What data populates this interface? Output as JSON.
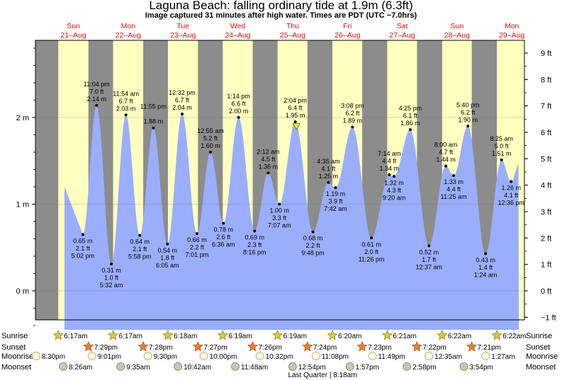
{
  "header": {
    "title": "Laguna Beach: falling  ordinary tide at 1.9m (6.3ft)",
    "subtitle": "Image captured 31 minutes after high water. Times are PDT (UTC −7.0hrs)"
  },
  "colors": {
    "night": "#8c8c8c",
    "day": "#ffffc0",
    "water": "#9aaefc",
    "dayname": "#e01010"
  },
  "days": [
    {
      "name": "Sun",
      "date": "21–Aug"
    },
    {
      "name": "Mon",
      "date": "22–Aug"
    },
    {
      "name": "Tue",
      "date": "23–Aug"
    },
    {
      "name": "Wed",
      "date": "24–Aug"
    },
    {
      "name": "Thu",
      "date": "25–Aug"
    },
    {
      "name": "Fri",
      "date": "26–Aug"
    },
    {
      "name": "Sat",
      "date": "27–Aug"
    },
    {
      "name": "Sun",
      "date": "28–Aug"
    },
    {
      "name": "Mon",
      "date": "29–Aug"
    }
  ],
  "chart_data": {
    "type": "area",
    "title": "Laguna Beach: falling  ordinary tide at 1.9m (6.3ft)",
    "left_axis": {
      "unit": "m",
      "ticks": [
        {
          "v": 0,
          "label": "0 m"
        },
        {
          "v": 1,
          "label": "1 m"
        },
        {
          "v": 2,
          "label": "2 m"
        }
      ],
      "ylim": [
        -0.45,
        2.9
      ]
    },
    "right_axis": {
      "unit": "ft",
      "ticks": [
        "−1 ft",
        "0 ft",
        "1 ft",
        "2 ft",
        "3 ft",
        "4 ft",
        "5 ft",
        "6 ft",
        "7 ft",
        "8 ft",
        "9 ft"
      ]
    },
    "x_unit": "hours since Sun 21-Aug 00:00 PDT",
    "xlim": [
      0,
      216
    ],
    "tides": [
      {
        "t": 17.03,
        "m": 0.65,
        "m_label": "0.65 m",
        "ft": "2.1 ft",
        "time": "5:02 pm",
        "type": "low"
      },
      {
        "t": 23.07,
        "m": 2.14,
        "m_label": "2.14 m",
        "ft": "7.0 ft",
        "time": "11:04 pm",
        "type": "high"
      },
      {
        "t": 29.53,
        "m": 0.31,
        "m_label": "0.31 m",
        "ft": "1.0 ft",
        "time": "5:32 am",
        "type": "low"
      },
      {
        "t": 35.9,
        "m": 2.03,
        "m_label": "2.03 m",
        "ft": "6.7 ft",
        "time": "11:54 am",
        "type": "high"
      },
      {
        "t": 41.97,
        "m": 0.64,
        "m_label": "0.64 m",
        "ft": "2.1 ft",
        "time": "5:58 pm",
        "type": "low"
      },
      {
        "t": 47.92,
        "m": 1.88,
        "m_label": "1.88 m",
        "ft": "",
        "time": "11:55 pm",
        "type": "high"
      },
      {
        "t": 54.08,
        "m": 0.54,
        "m_label": "0.54 m",
        "ft": "1.8 ft",
        "time": "6:05 am",
        "type": "low"
      },
      {
        "t": 60.53,
        "m": 2.04,
        "m_label": "2.04 m",
        "ft": "6.7 ft",
        "time": "12:32 pm",
        "type": "high"
      },
      {
        "t": 67.02,
        "m": 0.66,
        "m_label": "0.66 m",
        "ft": "2.2 ft",
        "time": "7:01 pm",
        "type": "low"
      },
      {
        "t": 72.92,
        "m": 1.6,
        "m_label": "1.60 m",
        "ft": "5.2 ft",
        "time": "12:55 am",
        "type": "high"
      },
      {
        "t": 78.6,
        "m": 0.78,
        "m_label": "0.78 m",
        "ft": "2.6 ft",
        "time": "6:36 am",
        "type": "low"
      },
      {
        "t": 85.23,
        "m": 2.0,
        "m_label": "2.00 m",
        "ft": "6.6 ft",
        "time": "1:14 pm",
        "type": "high"
      },
      {
        "t": 92.27,
        "m": 0.69,
        "m_label": "0.69 m",
        "ft": "2.3 ft",
        "time": "8:16 pm",
        "type": "low"
      },
      {
        "t": 98.2,
        "m": 1.36,
        "m_label": "1.36 m",
        "ft": "4.5 ft",
        "time": "2:12 am",
        "type": "high"
      },
      {
        "t": 103.12,
        "m": 1.0,
        "m_label": "1.00 m",
        "ft": "3.3 ft",
        "time": "7:07 am",
        "type": "low"
      },
      {
        "t": 110.07,
        "m": 1.95,
        "m_label": "1.95 m",
        "ft": "6.4 ft",
        "time": "2:04 pm",
        "type": "high"
      },
      {
        "t": 117.8,
        "m": 0.68,
        "m_label": "0.68 m",
        "ft": "2.2 ft",
        "time": "9:48 pm",
        "type": "low"
      },
      {
        "t": 124.58,
        "m": 1.25,
        "m_label": "1.25 m",
        "ft": "4.1 ft",
        "time": "4:35 am",
        "type": "high"
      },
      {
        "t": 127.7,
        "m": 1.19,
        "m_label": "1.19 m",
        "ft": "3.9 ft",
        "time": "7:42 am",
        "type": "low"
      },
      {
        "t": 135.13,
        "m": 1.89,
        "m_label": "1.89 m",
        "ft": "6.2 ft",
        "time": "3:08 pm",
        "type": "high"
      },
      {
        "t": 143.43,
        "m": 0.61,
        "m_label": "0.61 m",
        "ft": "2.0 ft",
        "time": "11:26 pm",
        "type": "low"
      },
      {
        "t": 151.23,
        "m": 1.34,
        "m_label": "1.34 m",
        "ft": "4.4 ft",
        "time": "7:14 am",
        "type": "high"
      },
      {
        "t": 153.33,
        "m": 1.32,
        "m_label": "1.32 m",
        "ft": "4.3 ft",
        "time": "9:20 am",
        "type": "low"
      },
      {
        "t": 160.42,
        "m": 1.86,
        "m_label": "1.86 m",
        "ft": "6.1 ft",
        "time": "4:25 pm",
        "type": "high"
      },
      {
        "t": 168.62,
        "m": 0.52,
        "m_label": "0.52 m",
        "ft": "1.7 ft",
        "time": "12:37 am",
        "type": "low"
      },
      {
        "t": 176.0,
        "m": 1.44,
        "m_label": "1.44 m",
        "ft": "4.7 ft",
        "time": "8:00 am",
        "type": "high"
      },
      {
        "t": 179.42,
        "m": 1.33,
        "m_label": "1.33 m",
        "ft": "4.4 ft",
        "time": "11:25 am",
        "type": "low"
      },
      {
        "t": 185.67,
        "m": 1.9,
        "m_label": "1.90 m",
        "ft": "6.2 ft",
        "time": "5:40 pm",
        "type": "high"
      },
      {
        "t": 193.4,
        "m": 0.43,
        "m_label": "0.43 m",
        "ft": "1.4 ft",
        "time": "1:24 am",
        "type": "low"
      },
      {
        "t": 200.42,
        "m": 1.51,
        "m_label": "1.51 m",
        "ft": "5.0 ft",
        "time": "8:25 am",
        "type": "high"
      },
      {
        "t": 204.6,
        "m": 1.26,
        "m_label": "1.26 m",
        "ft": "4.1 ft",
        "time": "12:36 pm",
        "type": "low"
      }
    ],
    "current": {
      "t": 110.57,
      "m": 1.9
    }
  },
  "astro": {
    "row_labels": {
      "sunrise": "Sunrise",
      "sunset": "Sunset",
      "moonrise": "Moonrise",
      "moonset": "Moonset"
    },
    "sunrise": [
      {
        "t": 6.28,
        "text": "6:17am"
      },
      {
        "t": 30.28,
        "text": "6:17am"
      },
      {
        "t": 54.3,
        "text": "6:18am"
      },
      {
        "t": 78.32,
        "text": "6:19am"
      },
      {
        "t": 102.32,
        "text": "6:19am"
      },
      {
        "t": 126.33,
        "text": "6:20am"
      },
      {
        "t": 150.35,
        "text": "6:21am"
      },
      {
        "t": 174.37,
        "text": "6:22am"
      },
      {
        "t": 198.37,
        "text": "6:22am"
      }
    ],
    "sunset": [
      {
        "t": 19.48,
        "text": "7:29pm"
      },
      {
        "t": 43.47,
        "text": "7:28pm"
      },
      {
        "t": 67.45,
        "text": "7:27pm"
      },
      {
        "t": 91.43,
        "text": "7:26pm"
      },
      {
        "t": 115.4,
        "text": "7:24pm"
      },
      {
        "t": 139.38,
        "text": "7:23pm"
      },
      {
        "t": 163.37,
        "text": "7:22pm"
      },
      {
        "t": 187.35,
        "text": "7:21pm"
      }
    ],
    "moonrise": [
      {
        "t": -3.5,
        "text": "8:30pm"
      },
      {
        "t": 21.02,
        "text": "9:01pm"
      },
      {
        "t": 45.5,
        "text": "9:30pm"
      },
      {
        "t": 70.0,
        "text": "10:00pm"
      },
      {
        "t": 94.53,
        "text": "10:32pm"
      },
      {
        "t": 119.13,
        "text": "11:08pm"
      },
      {
        "t": 143.82,
        "text": "11:49pm"
      },
      {
        "t": 168.58,
        "text": "12:35am"
      },
      {
        "t": 193.45,
        "text": "1:27am"
      }
    ],
    "moonset": [
      {
        "t": 8.43,
        "text": "8:26am"
      },
      {
        "t": 33.58,
        "text": "9:35am"
      },
      {
        "t": 58.7,
        "text": "10:42am"
      },
      {
        "t": 83.8,
        "text": "11:48am"
      },
      {
        "t": 108.9,
        "text": "12:54pm"
      },
      {
        "t": 133.95,
        "text": "1:57pm"
      },
      {
        "t": 158.97,
        "text": "2:58pm"
      },
      {
        "t": 183.9,
        "text": "3:54pm"
      }
    ],
    "moon_phase": "Last Quarter | 8:18am"
  }
}
